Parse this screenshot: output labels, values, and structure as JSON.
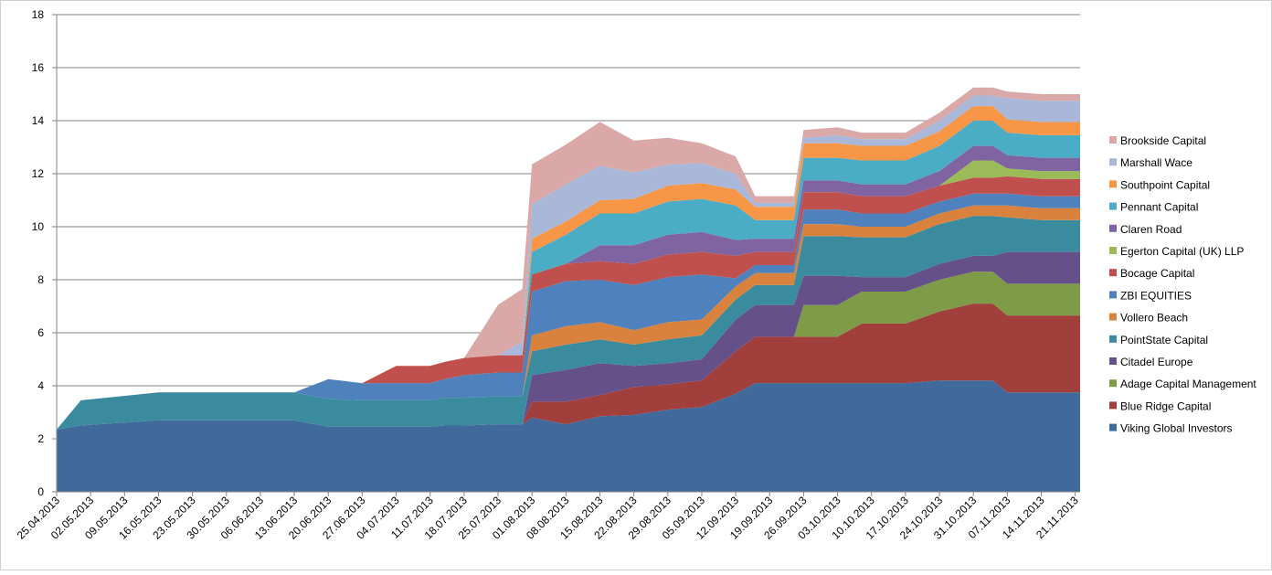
{
  "chart_data": {
    "type": "area",
    "stacked": true,
    "title": "",
    "xlabel": "",
    "ylabel": "",
    "ylim": [
      0,
      18
    ],
    "yticks": [
      "0",
      "2",
      "4",
      "6",
      "8",
      "10",
      "12",
      "14",
      "16",
      "18"
    ],
    "grid": "horizontal",
    "legend_position": "right",
    "x_tick_labels": [
      "25.04.2013",
      "02.05.2013",
      "09.05.2013",
      "16.05.2013",
      "23.05.2013",
      "30.05.2013",
      "06.06.2013",
      "13.06.2013",
      "20.06.2013",
      "27.06.2013",
      "04.07.2013",
      "11.07.2013",
      "18.07.2013",
      "25.07.2013",
      "01.08.2013",
      "08.08.2013",
      "15.08.2013",
      "22.08.2013",
      "29.08.2013",
      "05.09.2013",
      "12.09.2013",
      "19.09.2013",
      "26.09.2013",
      "03.10.2013",
      "10.10.2013",
      "17.10.2013",
      "24.10.2013",
      "31.10.2013",
      "07.11.2013",
      "14.11.2013",
      "21.11.2013"
    ],
    "x": [
      "25.04.2013",
      "30.04.2013",
      "16.05.2013",
      "13.06.2013",
      "20.06.2013",
      "27.06.2013",
      "04.07.2013",
      "11.07.2013",
      "14.07.2013",
      "18.07.2013",
      "25.07.2013",
      "30.07.2013",
      "01.08.2013",
      "08.08.2013",
      "15.08.2013",
      "22.08.2013",
      "29.08.2013",
      "05.09.2013",
      "12.09.2013",
      "16.09.2013",
      "19.09.2013",
      "24.09.2013",
      "26.09.2013",
      "03.10.2013",
      "08.10.2013",
      "17.10.2013",
      "24.10.2013",
      "31.10.2013",
      "04.11.2013",
      "07.11.2013",
      "14.11.2013",
      "21.11.2013",
      "22.11.2013"
    ],
    "series": [
      {
        "name": "Viking Global Investors",
        "color": "#416a9c",
        "values": [
          2.35,
          2.5,
          2.7,
          2.7,
          2.45,
          2.45,
          2.45,
          2.45,
          2.5,
          2.5,
          2.55,
          2.55,
          2.8,
          2.55,
          2.85,
          2.9,
          3.1,
          3.2,
          3.7,
          4.1,
          4.1,
          4.1,
          4.1,
          4.1,
          4.1,
          4.1,
          4.2,
          4.2,
          4.2,
          3.75,
          3.75,
          3.75,
          3.75
        ]
      },
      {
        "name": "Blue Ridge Capital",
        "color": "#a13f3c",
        "values": [
          0,
          0,
          0,
          0,
          0,
          0,
          0,
          0,
          0,
          0,
          0,
          0,
          0.6,
          0.85,
          0.8,
          1.05,
          0.95,
          1.0,
          1.6,
          1.75,
          1.75,
          1.75,
          1.75,
          1.75,
          2.25,
          2.25,
          2.6,
          2.9,
          2.9,
          2.9,
          2.9,
          2.9,
          2.9
        ]
      },
      {
        "name": "Adage Capital  Management",
        "color": "#7e9c47",
        "values": [
          0,
          0,
          0,
          0,
          0,
          0,
          0,
          0,
          0,
          0,
          0,
          0,
          0,
          0,
          0,
          0,
          0,
          0,
          0,
          0,
          0,
          0,
          1.2,
          1.2,
          1.2,
          1.2,
          1.2,
          1.2,
          1.2,
          1.2,
          1.2,
          1.2,
          1.2
        ]
      },
      {
        "name": "Citadel Europe",
        "color": "#66508a",
        "values": [
          0,
          0,
          0,
          0,
          0,
          0,
          0,
          0,
          0,
          0,
          0,
          0,
          1.0,
          1.2,
          1.2,
          0.8,
          0.8,
          0.8,
          1.2,
          1.2,
          1.2,
          1.2,
          1.1,
          1.1,
          0.55,
          0.55,
          0.6,
          0.6,
          0.6,
          1.2,
          1.2,
          1.2,
          1.2
        ]
      },
      {
        "name": "PointState Capital",
        "color": "#3a8b9e",
        "values": [
          0,
          0.95,
          1.05,
          1.05,
          1.05,
          1.0,
          1.0,
          1.0,
          1.05,
          1.05,
          1.05,
          1.05,
          0.9,
          0.95,
          0.9,
          0.8,
          0.9,
          0.9,
          0.75,
          0.75,
          0.75,
          0.75,
          1.5,
          1.5,
          1.5,
          1.5,
          1.5,
          1.5,
          1.5,
          1.3,
          1.2,
          1.2,
          1.2
        ]
      },
      {
        "name": "Vollero Beach",
        "color": "#d8823d",
        "values": [
          0,
          0,
          0,
          0,
          0,
          0,
          0,
          0,
          0,
          0,
          0,
          0,
          0.6,
          0.7,
          0.65,
          0.55,
          0.65,
          0.6,
          0.5,
          0.45,
          0.45,
          0.45,
          0.45,
          0.45,
          0.4,
          0.4,
          0.4,
          0.4,
          0.4,
          0.45,
          0.45,
          0.45,
          0.45
        ]
      },
      {
        "name": "ZBI EQUITIES",
        "color": "#4f82bd",
        "values": [
          0,
          0,
          0,
          0,
          0.75,
          0.65,
          0.65,
          0.65,
          0.7,
          0.85,
          0.9,
          0.9,
          1.65,
          1.7,
          1.6,
          1.7,
          1.7,
          1.7,
          0.3,
          0.3,
          0.3,
          0.3,
          0.55,
          0.55,
          0.5,
          0.5,
          0.45,
          0.45,
          0.45,
          0.45,
          0.45,
          0.45,
          0.45
        ]
      },
      {
        "name": "Bocage Capital",
        "color": "#c0504d",
        "values": [
          0,
          0,
          0,
          0,
          0,
          0,
          0.65,
          0.65,
          0.65,
          0.65,
          0.65,
          0.65,
          0.65,
          0.65,
          0.7,
          0.8,
          0.85,
          0.85,
          0.85,
          0.5,
          0.5,
          0.5,
          0.65,
          0.65,
          0.65,
          0.65,
          0.6,
          0.6,
          0.6,
          0.65,
          0.65,
          0.65,
          0.65
        ]
      },
      {
        "name": "Egerton Capital (UK) LLP",
        "color": "#9bbb59",
        "values": [
          0,
          0,
          0,
          0,
          0,
          0,
          0,
          0,
          0,
          0,
          0,
          0,
          0,
          0,
          0,
          0,
          0,
          0,
          0,
          0,
          0,
          0,
          0,
          0,
          0,
          0,
          0,
          0.65,
          0.65,
          0.3,
          0.3,
          0.3,
          0.3
        ]
      },
      {
        "name": "Claren Road",
        "color": "#8064a2",
        "values": [
          0,
          0,
          0,
          0,
          0,
          0,
          0,
          0,
          0,
          0,
          0,
          0,
          0,
          0,
          0.6,
          0.7,
          0.75,
          0.75,
          0.6,
          0.5,
          0.5,
          0.5,
          0.45,
          0.45,
          0.45,
          0.45,
          0.55,
          0.55,
          0.55,
          0.5,
          0.5,
          0.5,
          0.5
        ]
      },
      {
        "name": "Pennant Capital",
        "color": "#4bacc6",
        "values": [
          0,
          0,
          0,
          0,
          0,
          0,
          0,
          0,
          0,
          0,
          0,
          0,
          0.85,
          1.1,
          1.2,
          1.2,
          1.25,
          1.25,
          1.3,
          0.7,
          0.7,
          0.7,
          0.85,
          0.85,
          0.9,
          0.9,
          0.95,
          0.95,
          0.95,
          0.85,
          0.85,
          0.85,
          0.85
        ]
      },
      {
        "name": "Southpoint Capital",
        "color": "#f79646",
        "values": [
          0,
          0,
          0,
          0,
          0,
          0,
          0,
          0,
          0,
          0,
          0,
          0,
          0.5,
          0.5,
          0.5,
          0.55,
          0.6,
          0.6,
          0.6,
          0.5,
          0.5,
          0.5,
          0.55,
          0.55,
          0.55,
          0.55,
          0.55,
          0.55,
          0.55,
          0.5,
          0.5,
          0.5,
          0.5
        ]
      },
      {
        "name": "Marshall Wace",
        "color": "#a9b8d9",
        "values": [
          0,
          0,
          0,
          0,
          0,
          0,
          0,
          0,
          0,
          0,
          0,
          0.5,
          1.3,
          1.4,
          1.3,
          1.0,
          0.8,
          0.75,
          0.6,
          0.15,
          0.15,
          0.15,
          0.2,
          0.3,
          0.25,
          0.25,
          0.4,
          0.4,
          0.4,
          0.8,
          0.8,
          0.8,
          0.8
        ]
      },
      {
        "name": "Brookside Capital",
        "color": "#d9a8a7",
        "values": [
          0,
          0,
          0,
          0,
          0,
          0,
          0,
          0,
          0,
          0,
          1.9,
          2.0,
          1.5,
          1.5,
          1.65,
          1.2,
          1.0,
          0.75,
          0.65,
          0.25,
          0.25,
          0.25,
          0.3,
          0.3,
          0.25,
          0.25,
          0.3,
          0.3,
          0.3,
          0.25,
          0.25,
          0.25,
          0.25
        ]
      }
    ]
  }
}
